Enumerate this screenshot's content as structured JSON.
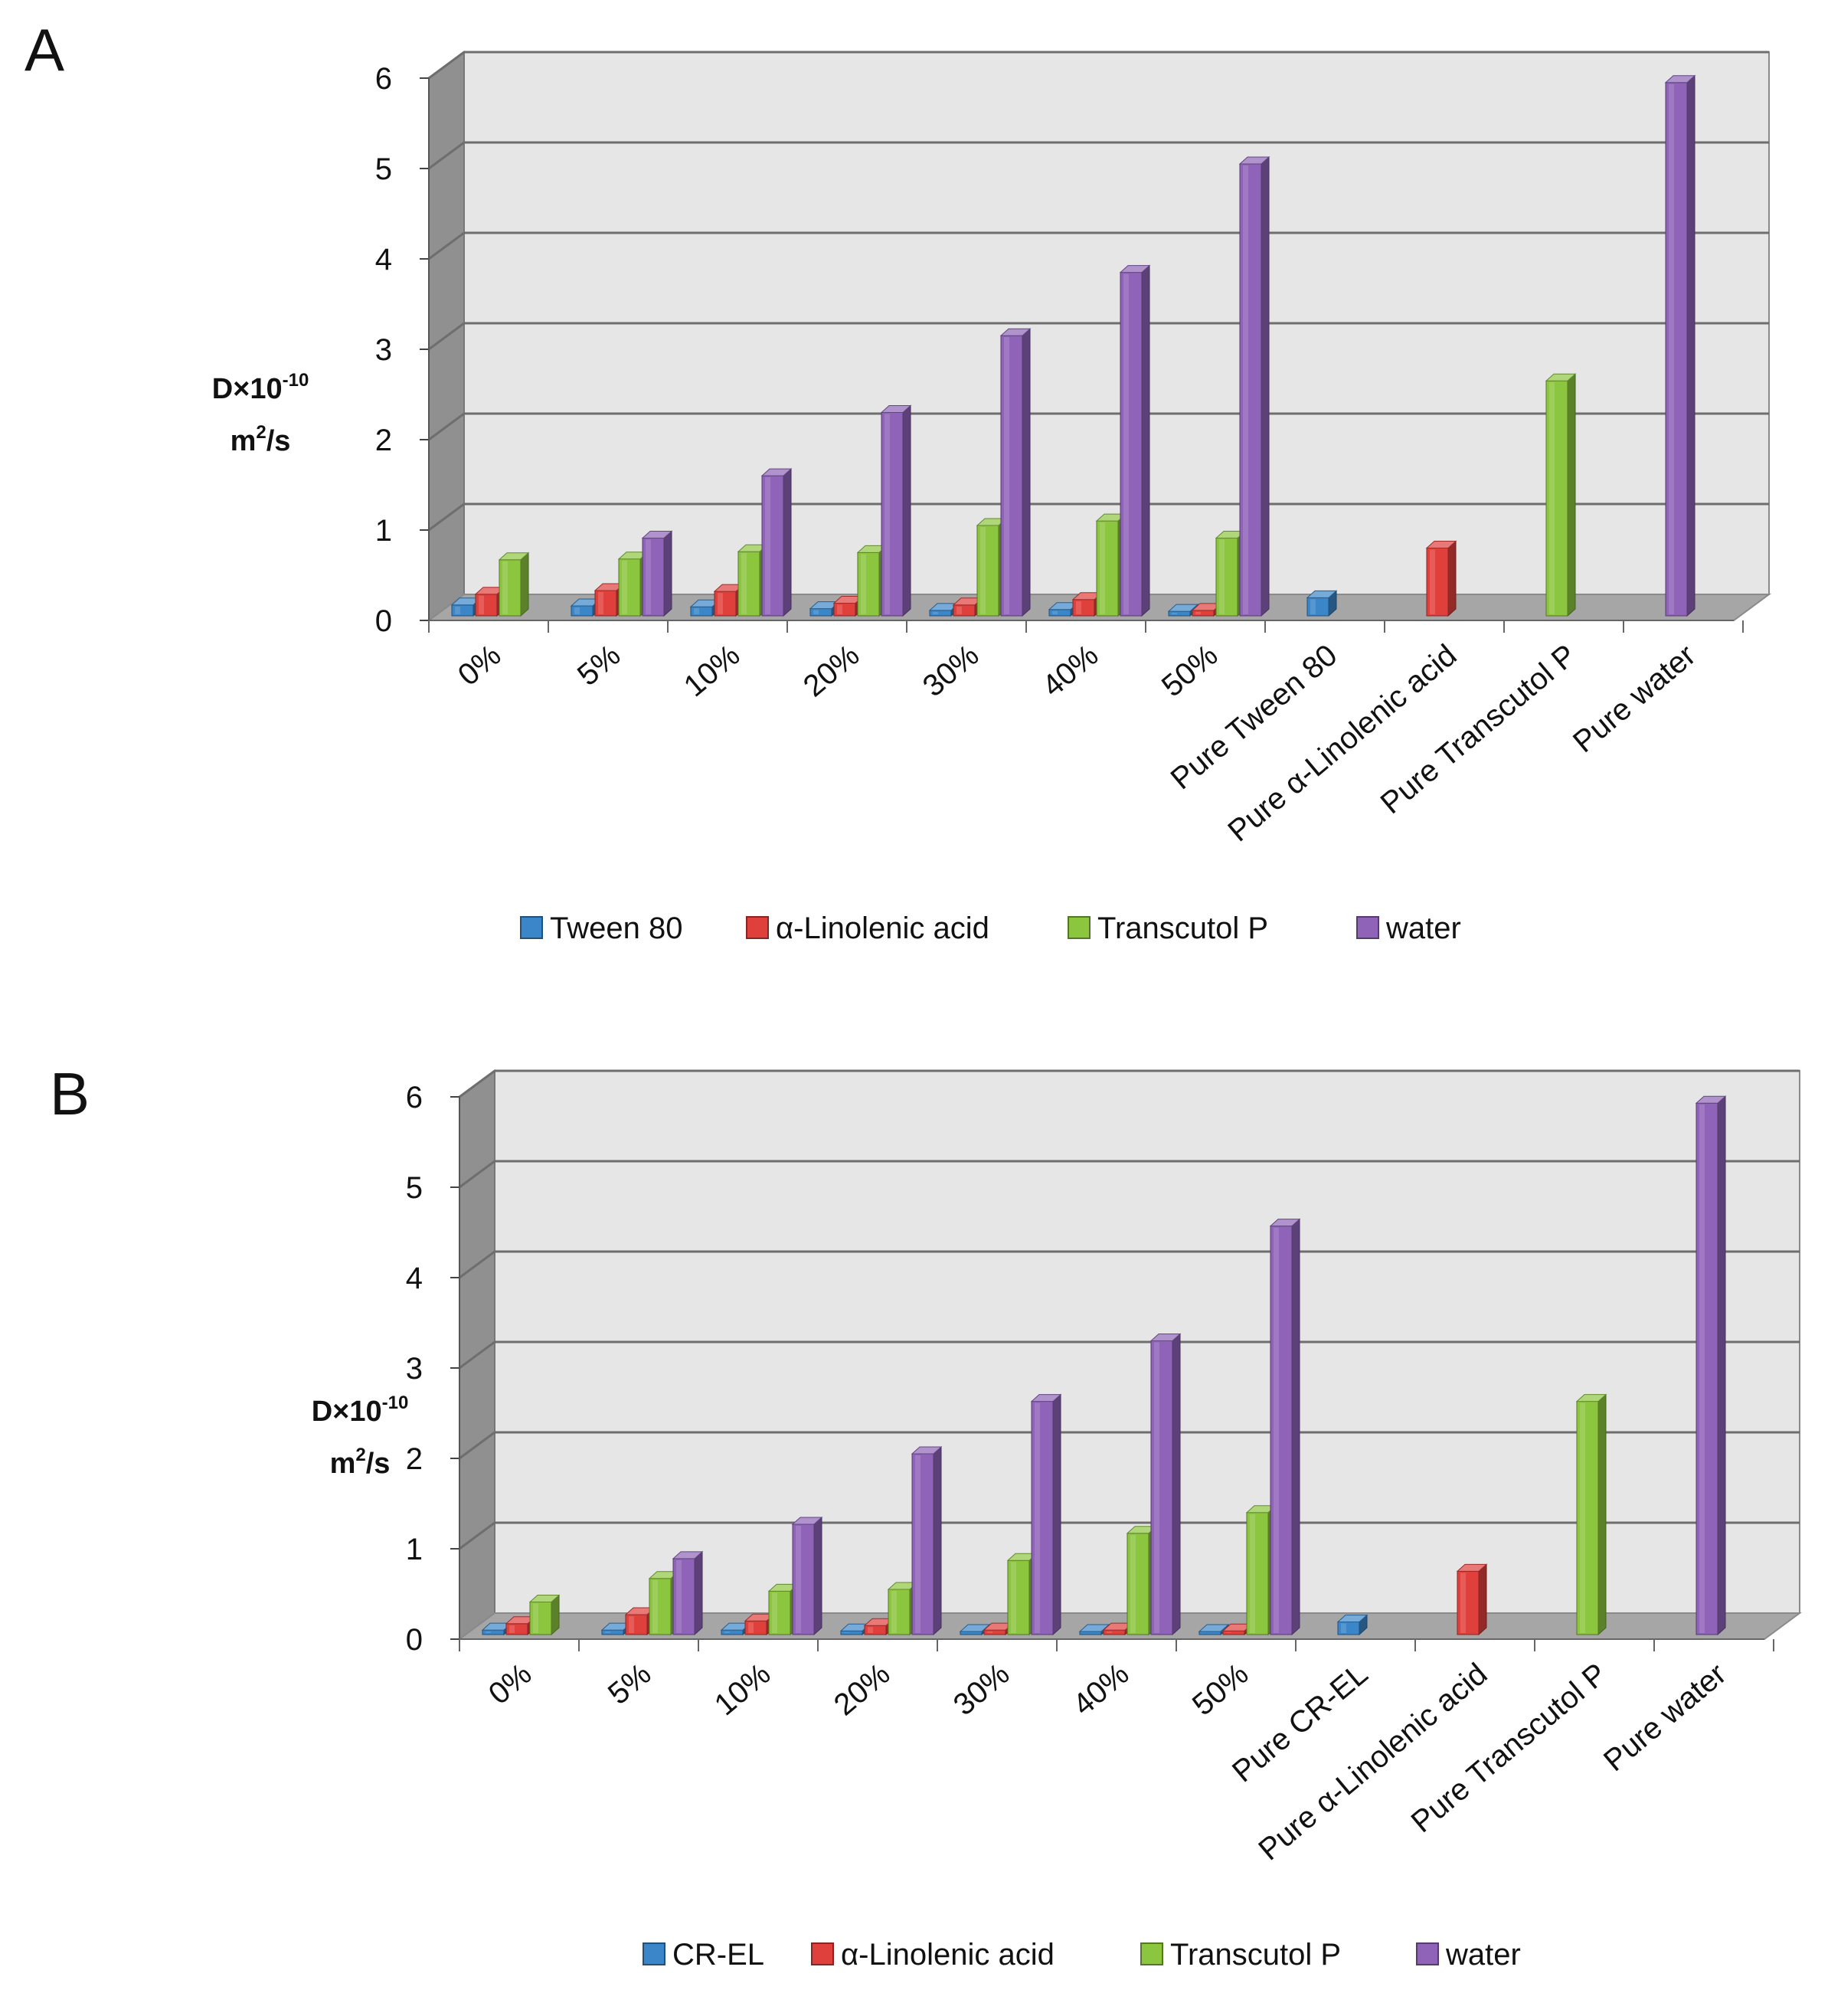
{
  "colors": {
    "Tween 80": "#3a86c8",
    "CR-EL": "#3a86c8",
    "α-Linolenic acid": "#e0403c",
    "Transcutol P": "#8cc63f",
    "water": "#8e63b8",
    "wall": "#e6e6e6",
    "floor": "#a6a6a6",
    "side_wall": "#909090",
    "grid": "#6e6e6e"
  },
  "chart_data": [
    {
      "panel": "A",
      "type": "bar",
      "title": "",
      "ylabel": {
        "base": "D×10",
        "exp": "-10",
        "unit_base": "m",
        "unit_exp": "2",
        "unit_rest": "/s"
      },
      "xlabel": "",
      "ylim": [
        0,
        6
      ],
      "yticks": [
        "0",
        "1",
        "2",
        "3",
        "4",
        "5",
        "6"
      ],
      "grid": true,
      "legend_position": "bottom",
      "categories": [
        "0%",
        "5%",
        "10%",
        "20%",
        "30%",
        "40%",
        "50%",
        "Pure Tween 80",
        "Pure α-Linolenic acid",
        "Pure Transcutol P",
        "Pure water"
      ],
      "series": [
        {
          "name": "Tween 80",
          "values": [
            0.12,
            0.11,
            0.1,
            0.08,
            0.06,
            0.07,
            0.05,
            0.2,
            null,
            null,
            null
          ]
        },
        {
          "name": "α-Linolenic acid",
          "values": [
            0.24,
            0.28,
            0.27,
            0.14,
            0.12,
            0.18,
            0.06,
            null,
            0.75,
            null,
            null
          ]
        },
        {
          "name": "Transcutol P",
          "values": [
            0.62,
            0.63,
            0.71,
            0.7,
            1.0,
            1.05,
            0.86,
            null,
            null,
            2.6,
            null
          ]
        },
        {
          "name": "water",
          "values": [
            null,
            0.86,
            1.55,
            2.25,
            3.1,
            3.8,
            5.0,
            null,
            null,
            null,
            5.9
          ]
        }
      ]
    },
    {
      "panel": "B",
      "type": "bar",
      "title": "",
      "ylabel": {
        "base": "D×10",
        "exp": "-10",
        "unit_base": "m",
        "unit_exp": "2",
        "unit_rest": "/s"
      },
      "xlabel": "",
      "ylim": [
        0,
        6
      ],
      "yticks": [
        "0",
        "1",
        "2",
        "3",
        "4",
        "5",
        "6"
      ],
      "grid": true,
      "legend_position": "bottom",
      "categories": [
        "0%",
        "5%",
        "10%",
        "20%",
        "30%",
        "40%",
        "50%",
        "Pure CR-EL",
        "Pure α-Linolenic acid",
        "Pure Transcutol P",
        "Pure water"
      ],
      "series": [
        {
          "name": "CR-EL",
          "values": [
            0.05,
            0.05,
            0.05,
            0.04,
            0.03,
            0.03,
            0.03,
            0.14,
            null,
            null,
            null
          ]
        },
        {
          "name": "α-Linolenic acid",
          "values": [
            0.12,
            0.22,
            0.15,
            0.1,
            0.05,
            0.05,
            0.04,
            null,
            0.7,
            null,
            null
          ]
        },
        {
          "name": "Transcutol P",
          "values": [
            0.36,
            0.62,
            0.48,
            0.5,
            0.82,
            1.12,
            1.35,
            null,
            null,
            2.58,
            null
          ]
        },
        {
          "name": "water",
          "values": [
            null,
            0.84,
            1.22,
            2.0,
            2.58,
            3.25,
            4.52,
            null,
            null,
            null,
            5.88
          ]
        }
      ]
    }
  ]
}
